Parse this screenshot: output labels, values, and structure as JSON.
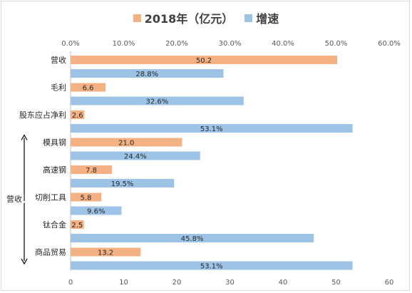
{
  "legend": {
    "series_a": "2018年（亿元）",
    "series_b": "增速"
  },
  "bracket_label": "营收",
  "chart_data": {
    "type": "bar",
    "orientation": "horizontal",
    "categories": [
      "营收",
      "毛利",
      "股东应占净利",
      "模具钢",
      "高速钢",
      "切削工具",
      "钛合金",
      "商品贸易"
    ],
    "series": [
      {
        "name": "2018年（亿元）",
        "axis": "bottom",
        "color": "#f4b183",
        "values": [
          50.2,
          6.6,
          2.6,
          21.0,
          7.8,
          5.8,
          2.5,
          13.2
        ],
        "labels": [
          "50.2",
          "6.6",
          "2.6",
          "21.0",
          "7.8",
          "5.8",
          "2.5",
          "13.2"
        ]
      },
      {
        "name": "增速",
        "axis": "top",
        "color": "#9dc3e6",
        "values": [
          28.8,
          32.6,
          53.1,
          24.4,
          19.5,
          9.6,
          45.8,
          53.1
        ],
        "labels": [
          "28.8%",
          "32.6%",
          "53.1%",
          "24.4%",
          "19.5%",
          "9.6%",
          "45.8%",
          "53.1%"
        ]
      }
    ],
    "x_bottom": {
      "range": [
        0,
        60
      ],
      "ticks": [
        "0",
        "10",
        "20",
        "30",
        "40",
        "50",
        "60"
      ]
    },
    "x_top": {
      "range": [
        0,
        60
      ],
      "ticks": [
        "0.0%",
        "10.0%",
        "20.0%",
        "30.0%",
        "40.0%",
        "50.0%",
        "60.0%"
      ]
    },
    "legend_position": "top-center",
    "grid": false
  }
}
